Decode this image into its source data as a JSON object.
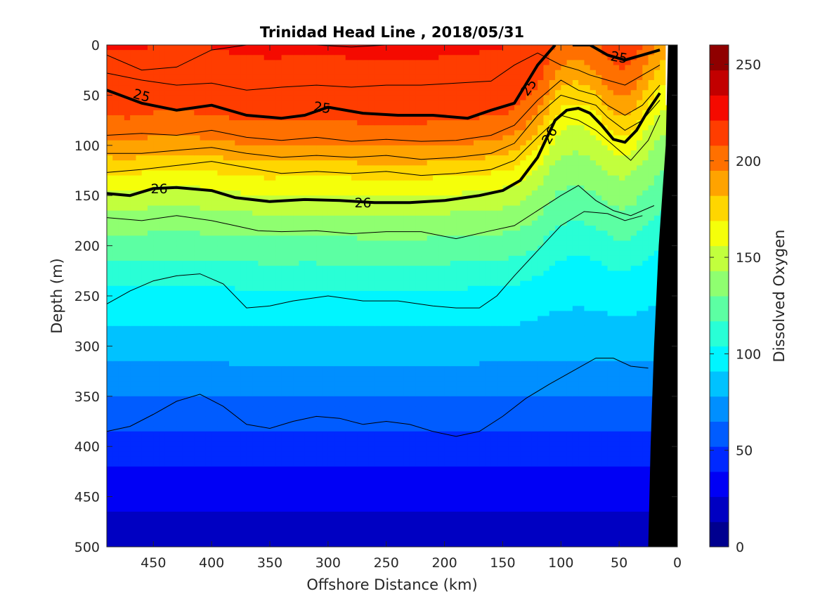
{
  "chart_data": {
    "type": "heatmap",
    "title": "Trinidad Head Line , 2018/05/31",
    "xlabel": "Offshore Distance (km)",
    "ylabel": "Depth (m)",
    "colorbar_label": "Dissolved Oxygen",
    "xlim": [
      490,
      0
    ],
    "ylim": [
      0,
      500
    ],
    "x_ticks": [
      450,
      400,
      350,
      300,
      250,
      200,
      150,
      100,
      50,
      0
    ],
    "y_ticks": [
      0,
      50,
      100,
      150,
      200,
      250,
      300,
      350,
      400,
      450,
      500
    ],
    "colorbar_range": [
      0,
      260
    ],
    "colorbar_ticks": [
      0,
      50,
      100,
      150,
      200,
      250
    ],
    "colormap": [
      "#00008f",
      "#0000c2",
      "#0000f5",
      "#0029ff",
      "#005cff",
      "#008fff",
      "#00c2ff",
      "#00f5ff",
      "#29ffd6",
      "#5cffa3",
      "#8fff70",
      "#c2ff3d",
      "#f5ff0a",
      "#ffd600",
      "#ffa300",
      "#ff7000",
      "#ff3d00",
      "#f50a00",
      "#c20000",
      "#8f0000"
    ],
    "oxygen_profile": {
      "depth": [
        0,
        30,
        60,
        90,
        110,
        140,
        170,
        200,
        250,
        300,
        350,
        400,
        450,
        500
      ],
      "oxygen": [
        222,
        218,
        214,
        200,
        185,
        160,
        140,
        125,
        100,
        85,
        65,
        45,
        30,
        15
      ]
    },
    "density_contours": [
      {
        "level": "25",
        "x": [
          490,
          460,
          430,
          400,
          370,
          340,
          320,
          300,
          270,
          240,
          210,
          180,
          160,
          140,
          120,
          105
        ],
        "y": [
          45,
          58,
          65,
          60,
          70,
          73,
          70,
          62,
          68,
          70,
          70,
          73,
          65,
          58,
          20,
          0
        ]
      },
      {
        "level": "25",
        "x": [
          90,
          75,
          60,
          45,
          30,
          15
        ],
        "y": [
          0,
          0,
          10,
          15,
          10,
          5
        ]
      },
      {
        "level": "26",
        "x": [
          490,
          470,
          450,
          430,
          400,
          380,
          350,
          320,
          290,
          260,
          230,
          200,
          170,
          150,
          135,
          120,
          105,
          95,
          85,
          75,
          65,
          55,
          45,
          35,
          25,
          15
        ],
        "y": [
          148,
          150,
          143,
          142,
          145,
          152,
          156,
          154,
          155,
          157,
          157,
          155,
          150,
          145,
          135,
          112,
          75,
          65,
          63,
          68,
          80,
          94,
          97,
          85,
          65,
          48
        ]
      }
    ],
    "thin_contours": [
      {
        "x": [
          490,
          460,
          430,
          400,
          370,
          340,
          310,
          280,
          250,
          220,
          190,
          160,
          140,
          120,
          105,
          95
        ],
        "y": [
          10,
          25,
          22,
          5,
          0,
          0,
          0,
          2,
          0,
          0,
          0,
          0,
          0,
          0,
          0,
          0
        ]
      },
      {
        "x": [
          490,
          460,
          430,
          400,
          370,
          340,
          310,
          280,
          250,
          220,
          190,
          160,
          140,
          120,
          100,
          85,
          75,
          60,
          45,
          30,
          15
        ],
        "y": [
          28,
          35,
          40,
          38,
          45,
          42,
          40,
          42,
          40,
          40,
          38,
          36,
          20,
          8,
          20,
          25,
          30,
          35,
          40,
          30,
          20
        ]
      },
      {
        "x": [
          490,
          460,
          430,
          400,
          370,
          340,
          310,
          280,
          250,
          220,
          190,
          160,
          140,
          120,
          100,
          85,
          70,
          60,
          45,
          30,
          15
        ],
        "y": [
          90,
          88,
          90,
          85,
          92,
          95,
          92,
          96,
          94,
          96,
          95,
          90,
          80,
          55,
          35,
          45,
          50,
          60,
          70,
          60,
          40
        ]
      },
      {
        "x": [
          490,
          460,
          430,
          400,
          370,
          340,
          310,
          280,
          250,
          220,
          190,
          160,
          140,
          120,
          100,
          85,
          70,
          60,
          45,
          30,
          15
        ],
        "y": [
          108,
          108,
          105,
          102,
          108,
          112,
          110,
          112,
          110,
          114,
          112,
          108,
          98,
          70,
          50,
          55,
          60,
          72,
          85,
          75,
          55
        ]
      },
      {
        "x": [
          490,
          460,
          430,
          400,
          370,
          340,
          310,
          280,
          250,
          220,
          190,
          160,
          140,
          120,
          100,
          85,
          70,
          55,
          40,
          25,
          15
        ],
        "y": [
          127,
          124,
          120,
          116,
          122,
          128,
          126,
          128,
          126,
          130,
          128,
          124,
          115,
          92,
          70,
          75,
          85,
          100,
          115,
          95,
          70
        ]
      },
      {
        "x": [
          490,
          460,
          430,
          400,
          380,
          360,
          340,
          310,
          280,
          250,
          220,
          190,
          160,
          140,
          120,
          100,
          85,
          70,
          55,
          40,
          20
        ],
        "y": [
          172,
          175,
          170,
          175,
          180,
          185,
          186,
          185,
          188,
          186,
          186,
          193,
          185,
          180,
          165,
          150,
          140,
          155,
          165,
          170,
          160
        ]
      },
      {
        "x": [
          490,
          470,
          450,
          430,
          410,
          390,
          370,
          350,
          330,
          300,
          270,
          240,
          210,
          190,
          170,
          155,
          140,
          120,
          100,
          80,
          60,
          45,
          30
        ],
        "y": [
          258,
          245,
          235,
          230,
          228,
          238,
          262,
          260,
          255,
          250,
          255,
          255,
          260,
          262,
          262,
          250,
          230,
          205,
          180,
          166,
          168,
          175,
          170
        ]
      },
      {
        "x": [
          490,
          470,
          450,
          430,
          410,
          390,
          370,
          350,
          330,
          310,
          290,
          270,
          250,
          230,
          210,
          190,
          170,
          150,
          130,
          110,
          90,
          70,
          55,
          40,
          25
        ],
        "y": [
          385,
          380,
          368,
          355,
          348,
          360,
          378,
          382,
          375,
          370,
          372,
          378,
          375,
          378,
          385,
          390,
          385,
          370,
          352,
          338,
          325,
          312,
          312,
          320,
          322
        ]
      }
    ],
    "bathymetry": {
      "x": [
        8,
        25,
        23,
        20,
        16,
        13,
        10,
        8
      ],
      "y": [
        0,
        500,
        400,
        300,
        200,
        150,
        100,
        0
      ]
    }
  }
}
